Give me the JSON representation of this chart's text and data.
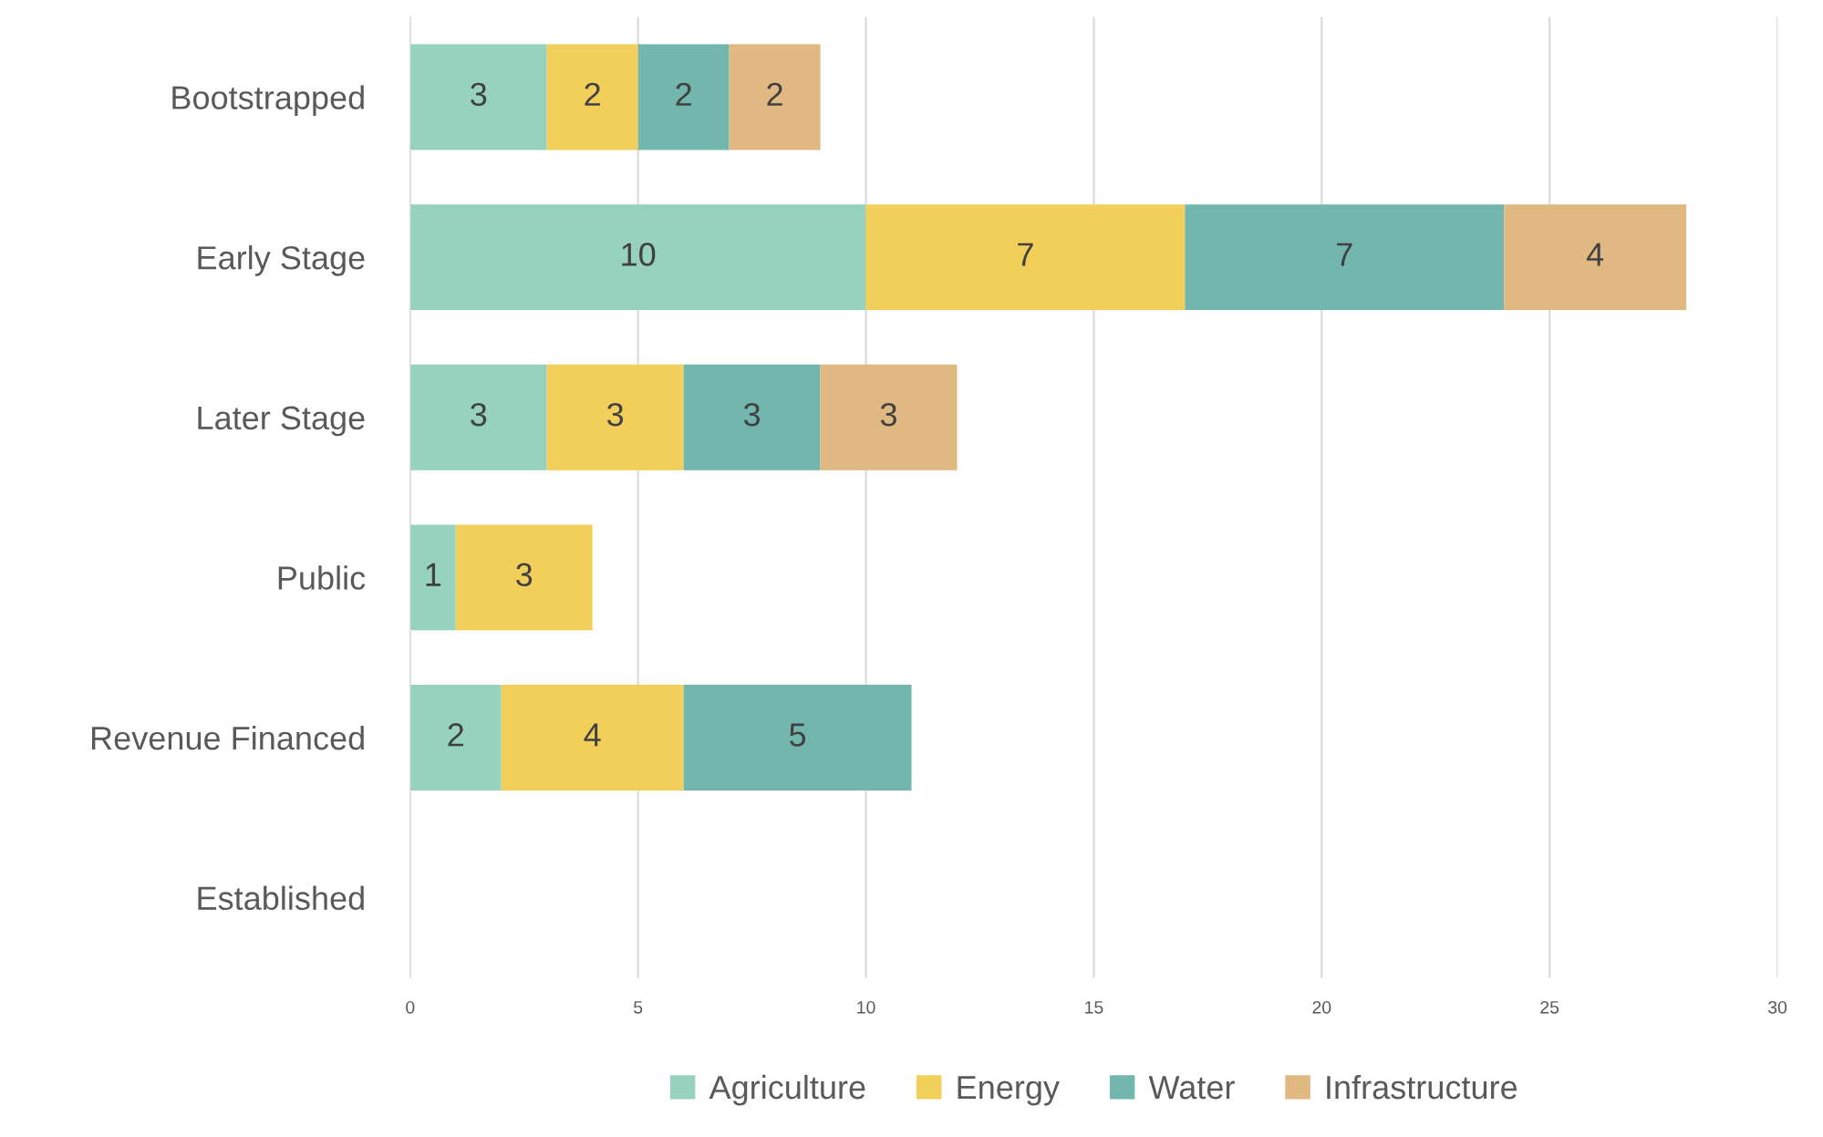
{
  "chart_data": {
    "type": "bar",
    "orientation": "horizontal",
    "stacked": true,
    "data_labels": true,
    "grid": "x",
    "legend": "bottom",
    "categories": [
      "Bootstrapped",
      "Early Stage",
      "Later Stage",
      "Public",
      "Revenue Financed",
      "Established"
    ],
    "series": [
      {
        "name": "Agriculture",
        "color": "#96d2bd",
        "values": [
          3,
          10,
          3,
          1,
          2,
          null
        ]
      },
      {
        "name": "Energy",
        "color": "#f2cf5b",
        "values": [
          2,
          7,
          3,
          3,
          4,
          null
        ]
      },
      {
        "name": "Water",
        "color": "#72b6ad",
        "values": [
          2,
          7,
          3,
          null,
          5,
          null
        ]
      },
      {
        "name": "Infrastructure",
        "color": "#e0b882",
        "values": [
          2,
          4,
          3,
          null,
          null,
          null
        ]
      }
    ],
    "xlim": [
      0,
      30
    ],
    "xticks": [
      0,
      5,
      10,
      15,
      20,
      25,
      30
    ]
  }
}
